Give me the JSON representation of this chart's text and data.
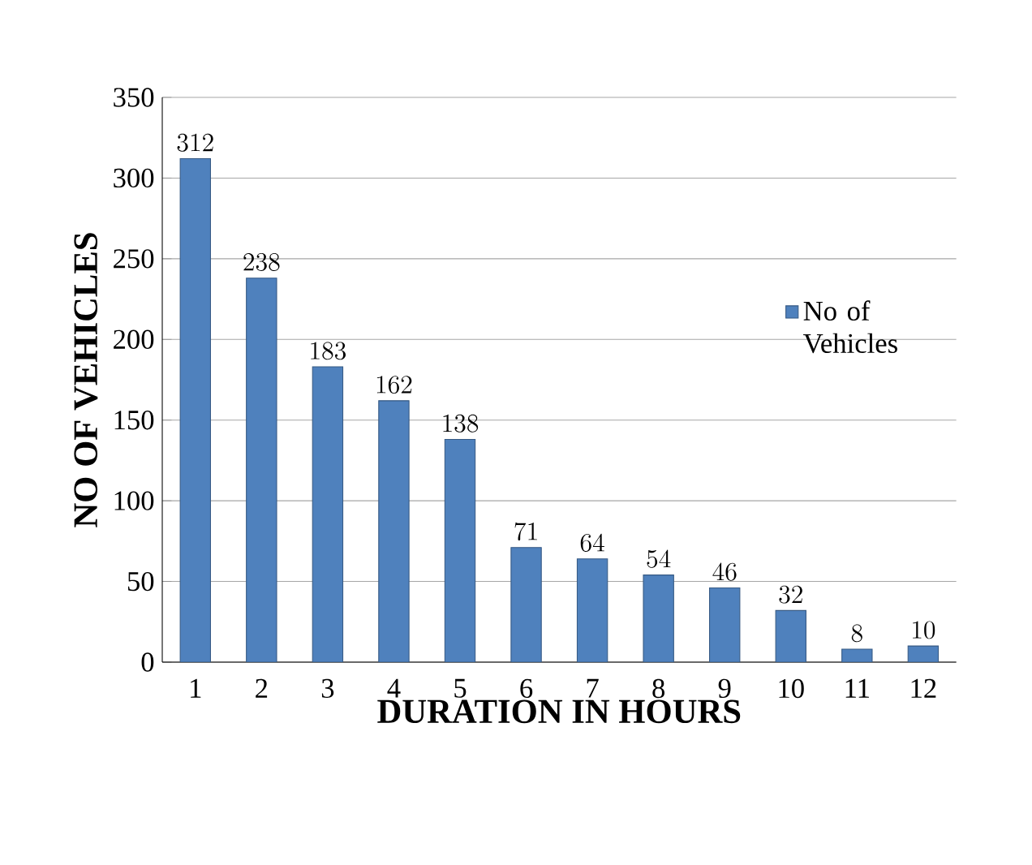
{
  "chart_data": {
    "type": "bar",
    "xlabel": "DURATION IN HOURS",
    "ylabel": "NO OF VEHICLES",
    "categories": [
      "1",
      "2",
      "3",
      "4",
      "5",
      "6",
      "7",
      "8",
      "9",
      "10",
      "11",
      "12"
    ],
    "series": [
      {
        "name": "No of Vehicles",
        "color": "#4f81bd",
        "values": [
          312,
          238,
          183,
          162,
          138,
          71,
          64,
          54,
          46,
          32,
          8,
          10
        ]
      }
    ],
    "ylim": [
      0,
      350
    ],
    "yticks": [
      0,
      50,
      100,
      150,
      200,
      250,
      300,
      350
    ],
    "grid": "y",
    "legend": "right",
    "data_labels": true
  }
}
